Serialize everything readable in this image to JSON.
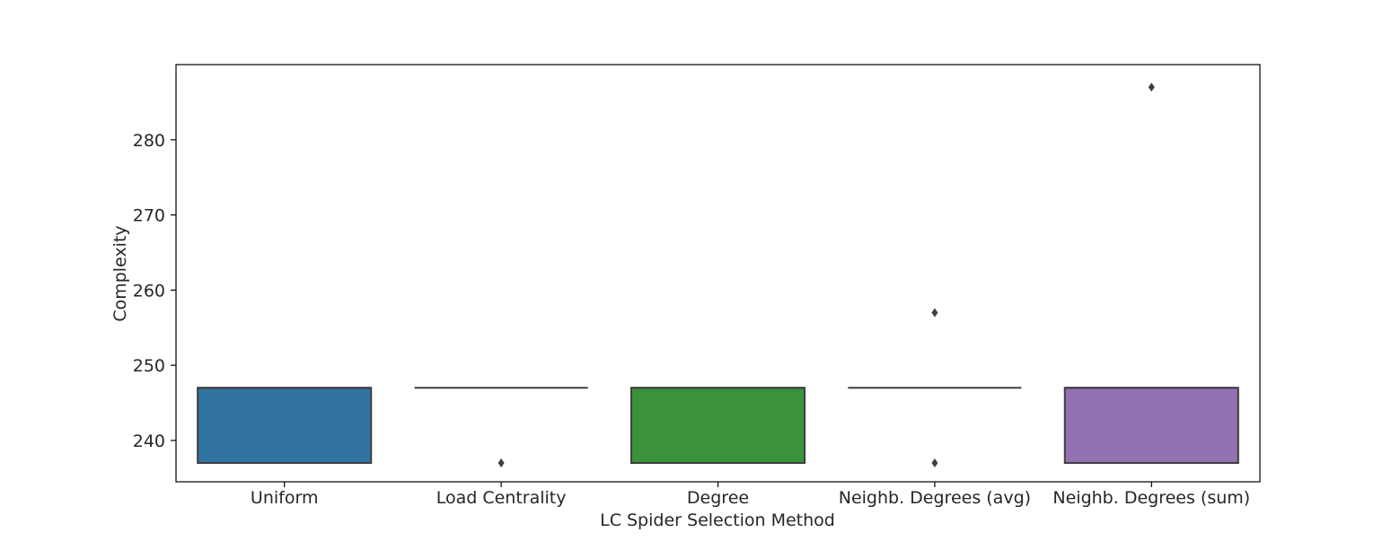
{
  "chart_data": {
    "type": "box",
    "xlabel": "LC Spider Selection Method",
    "ylabel": "Complexity",
    "ylim": [
      234.5,
      290.0
    ],
    "yticks": [
      240,
      250,
      260,
      270,
      280
    ],
    "grid": false,
    "categories": [
      "Uniform",
      "Load Centrality",
      "Degree",
      "Neighb. Degrees (avg)",
      "Neighb. Degrees (sum)"
    ],
    "boxes": [
      {
        "category": "Uniform",
        "q1": 237,
        "median": 247,
        "q3": 247,
        "whisker_low": 237,
        "whisker_high": 247,
        "outliers": [],
        "color": "#3274a1"
      },
      {
        "category": "Load Centrality",
        "q1": 247,
        "median": 247,
        "q3": 247,
        "whisker_low": 247,
        "whisker_high": 247,
        "outliers": [
          237
        ],
        "color": "#e1812c"
      },
      {
        "category": "Degree",
        "q1": 237,
        "median": 247,
        "q3": 247,
        "whisker_low": 237,
        "whisker_high": 247,
        "outliers": [],
        "color": "#3a923a"
      },
      {
        "category": "Neighb. Degrees (avg)",
        "q1": 247,
        "median": 247,
        "q3": 247,
        "whisker_low": 247,
        "whisker_high": 247,
        "outliers": [
          237,
          257
        ],
        "color": "#c03d3e"
      },
      {
        "category": "Neighb. Degrees (sum)",
        "q1": 237,
        "median": 247,
        "q3": 247,
        "whisker_low": 237,
        "whisker_high": 247,
        "outliers": [
          287
        ],
        "color": "#9372b2"
      }
    ]
  }
}
